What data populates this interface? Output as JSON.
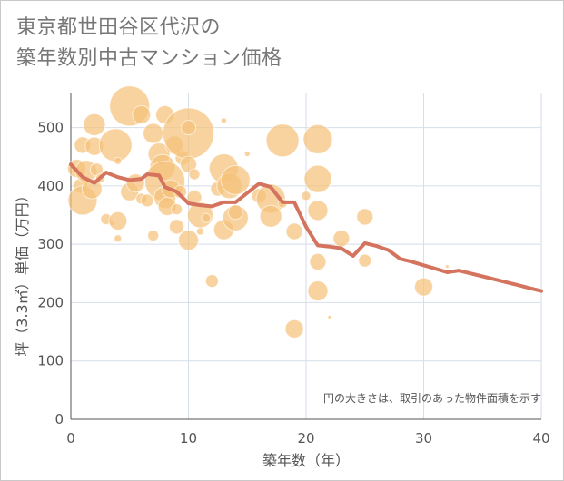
{
  "title_lines": [
    "東京都世田谷区代沢の",
    "築年数別中古マンション価格"
  ],
  "chart_data": {
    "type": "scatter",
    "title": "東京都世田谷区代沢の築年数別中古マンション価格",
    "xlabel": "築年数（年）",
    "ylabel": "坪（3.3㎡）単価（万円）",
    "xlim": [
      0,
      40
    ],
    "ylim": [
      0,
      560
    ],
    "xticks": [
      0,
      10,
      20,
      30,
      40
    ],
    "yticks": [
      0,
      100,
      200,
      300,
      400,
      500
    ],
    "grid": true,
    "annotation": "円の大きさは、取引のあった物件面積を示す",
    "colors": {
      "bubble": "#f5c27a",
      "line": "#d4735e",
      "grid": "#d5dee9"
    },
    "series": [
      {
        "type": "bubble",
        "points": [
          {
            "x": 0.5,
            "y": 430,
            "r": 10
          },
          {
            "x": 0.8,
            "y": 400,
            "r": 8
          },
          {
            "x": 1,
            "y": 470,
            "r": 9
          },
          {
            "x": 1,
            "y": 375,
            "r": 16
          },
          {
            "x": 1.3,
            "y": 425,
            "r": 12
          },
          {
            "x": 1.8,
            "y": 395,
            "r": 11
          },
          {
            "x": 2,
            "y": 505,
            "r": 12
          },
          {
            "x": 2,
            "y": 468,
            "r": 10
          },
          {
            "x": 2.2,
            "y": 428,
            "r": 7
          },
          {
            "x": 2.5,
            "y": 413,
            "r": 5
          },
          {
            "x": 3,
            "y": 343,
            "r": 6
          },
          {
            "x": 3.5,
            "y": 337,
            "r": 3
          },
          {
            "x": 3.8,
            "y": 470,
            "r": 18
          },
          {
            "x": 4,
            "y": 340,
            "r": 10
          },
          {
            "x": 4,
            "y": 310,
            "r": 4
          },
          {
            "x": 4,
            "y": 443,
            "r": 4
          },
          {
            "x": 5,
            "y": 537,
            "r": 22
          },
          {
            "x": 5,
            "y": 390,
            "r": 10
          },
          {
            "x": 5.5,
            "y": 405,
            "r": 10
          },
          {
            "x": 6,
            "y": 522,
            "r": 10
          },
          {
            "x": 6,
            "y": 378,
            "r": 6
          },
          {
            "x": 6.5,
            "y": 375,
            "r": 7
          },
          {
            "x": 7,
            "y": 490,
            "r": 11
          },
          {
            "x": 7,
            "y": 315,
            "r": 6
          },
          {
            "x": 7.5,
            "y": 455,
            "r": 12
          },
          {
            "x": 7.8,
            "y": 432,
            "r": 14
          },
          {
            "x": 8,
            "y": 522,
            "r": 10
          },
          {
            "x": 8,
            "y": 408,
            "r": 22
          },
          {
            "x": 8,
            "y": 380,
            "r": 12
          },
          {
            "x": 8.2,
            "y": 365,
            "r": 10
          },
          {
            "x": 8.5,
            "y": 395,
            "r": 10
          },
          {
            "x": 8.8,
            "y": 470,
            "r": 10
          },
          {
            "x": 9,
            "y": 330,
            "r": 8
          },
          {
            "x": 9,
            "y": 360,
            "r": 6
          },
          {
            "x": 9.3,
            "y": 390,
            "r": 7
          },
          {
            "x": 9.5,
            "y": 448,
            "r": 8
          },
          {
            "x": 10,
            "y": 490,
            "r": 28
          },
          {
            "x": 10,
            "y": 500,
            "r": 8
          },
          {
            "x": 10,
            "y": 437,
            "r": 9
          },
          {
            "x": 10,
            "y": 307,
            "r": 11
          },
          {
            "x": 10.5,
            "y": 420,
            "r": 6
          },
          {
            "x": 10.5,
            "y": 380,
            "r": 8
          },
          {
            "x": 11,
            "y": 350,
            "r": 14
          },
          {
            "x": 11,
            "y": 322,
            "r": 4
          },
          {
            "x": 11.5,
            "y": 345,
            "r": 5
          },
          {
            "x": 12,
            "y": 237,
            "r": 7
          },
          {
            "x": 12.5,
            "y": 395,
            "r": 8
          },
          {
            "x": 13,
            "y": 430,
            "r": 16
          },
          {
            "x": 13,
            "y": 512,
            "r": 3
          },
          {
            "x": 13,
            "y": 325,
            "r": 11
          },
          {
            "x": 13.5,
            "y": 400,
            "r": 14
          },
          {
            "x": 14,
            "y": 345,
            "r": 14
          },
          {
            "x": 14,
            "y": 410,
            "r": 16
          },
          {
            "x": 14,
            "y": 355,
            "r": 8
          },
          {
            "x": 15,
            "y": 455,
            "r": 3
          },
          {
            "x": 16,
            "y": 383,
            "r": 8
          },
          {
            "x": 17,
            "y": 378,
            "r": 16
          },
          {
            "x": 17,
            "y": 348,
            "r": 12
          },
          {
            "x": 18,
            "y": 478,
            "r": 18
          },
          {
            "x": 18,
            "y": 370,
            "r": 5
          },
          {
            "x": 19,
            "y": 322,
            "r": 9
          },
          {
            "x": 19,
            "y": 155,
            "r": 10
          },
          {
            "x": 20,
            "y": 383,
            "r": 5
          },
          {
            "x": 21,
            "y": 480,
            "r": 16
          },
          {
            "x": 21,
            "y": 412,
            "r": 15
          },
          {
            "x": 21,
            "y": 358,
            "r": 11
          },
          {
            "x": 21,
            "y": 270,
            "r": 9
          },
          {
            "x": 21,
            "y": 220,
            "r": 11
          },
          {
            "x": 22,
            "y": 175,
            "r": 2
          },
          {
            "x": 23,
            "y": 310,
            "r": 9
          },
          {
            "x": 25,
            "y": 347,
            "r": 9
          },
          {
            "x": 25,
            "y": 272,
            "r": 7
          },
          {
            "x": 30,
            "y": 227,
            "r": 10
          },
          {
            "x": 32,
            "y": 262,
            "r": 2
          }
        ]
      },
      {
        "type": "line",
        "points": [
          {
            "x": 0,
            "y": 437
          },
          {
            "x": 1,
            "y": 415
          },
          {
            "x": 2,
            "y": 405
          },
          {
            "x": 3,
            "y": 423
          },
          {
            "x": 4,
            "y": 415
          },
          {
            "x": 5,
            "y": 410
          },
          {
            "x": 6,
            "y": 412
          },
          {
            "x": 6.5,
            "y": 420
          },
          {
            "x": 7.5,
            "y": 418
          },
          {
            "x": 8,
            "y": 398
          },
          {
            "x": 9,
            "y": 390
          },
          {
            "x": 10,
            "y": 370
          },
          {
            "x": 11,
            "y": 367
          },
          {
            "x": 12,
            "y": 365
          },
          {
            "x": 13,
            "y": 372
          },
          {
            "x": 14,
            "y": 372
          },
          {
            "x": 15,
            "y": 388
          },
          {
            "x": 16,
            "y": 404
          },
          {
            "x": 17,
            "y": 398
          },
          {
            "x": 18,
            "y": 372
          },
          {
            "x": 19,
            "y": 372
          },
          {
            "x": 20,
            "y": 330
          },
          {
            "x": 21,
            "y": 298
          },
          {
            "x": 22,
            "y": 296
          },
          {
            "x": 23,
            "y": 293
          },
          {
            "x": 24,
            "y": 280
          },
          {
            "x": 25,
            "y": 302
          },
          {
            "x": 26,
            "y": 297
          },
          {
            "x": 27,
            "y": 290
          },
          {
            "x": 28,
            "y": 275
          },
          {
            "x": 29,
            "y": 270
          },
          {
            "x": 30,
            "y": 264
          },
          {
            "x": 31,
            "y": 258
          },
          {
            "x": 32,
            "y": 252
          },
          {
            "x": 33,
            "y": 255
          },
          {
            "x": 34,
            "y": 250
          },
          {
            "x": 35,
            "y": 245
          },
          {
            "x": 36,
            "y": 240
          },
          {
            "x": 37,
            "y": 235
          },
          {
            "x": 38,
            "y": 230
          },
          {
            "x": 39,
            "y": 225
          },
          {
            "x": 40,
            "y": 220
          }
        ]
      }
    ]
  }
}
